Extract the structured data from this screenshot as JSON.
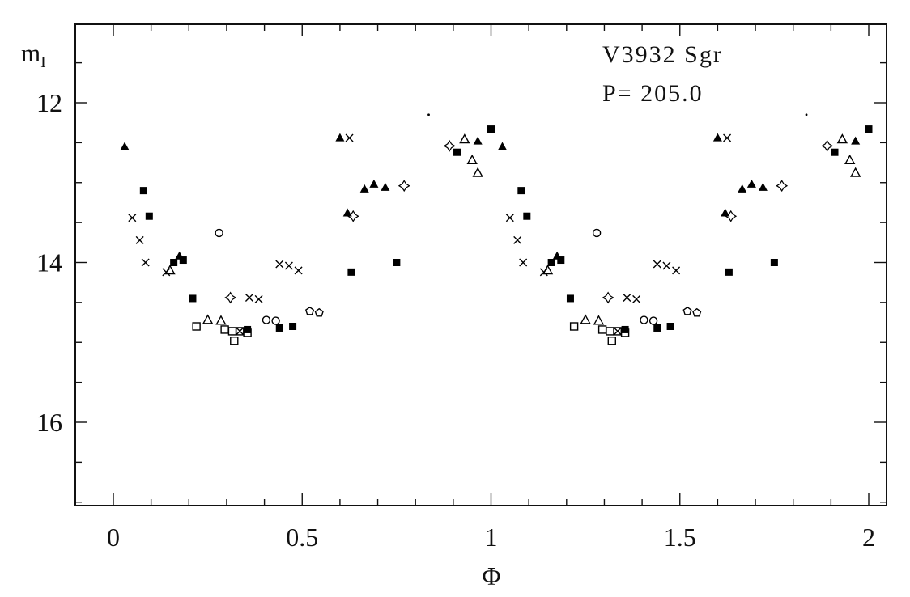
{
  "figure": {
    "y_axis_label_main": "m",
    "y_axis_label_sub": "I"
  },
  "chart_data": {
    "type": "scatter",
    "title": "V3932 Sgr",
    "subtitle": "P= 205.0",
    "xlabel": "Φ",
    "ylabel": "m_I",
    "xlim": [
      -0.1,
      2.05
    ],
    "ylim": [
      11.0,
      17.05
    ],
    "y_inverted": true,
    "grid": false,
    "legend": "none",
    "x_ticks": [
      {
        "value": 0,
        "label": "0"
      },
      {
        "value": 0.5,
        "label": "0.5"
      },
      {
        "value": 1,
        "label": "1"
      },
      {
        "value": 1.5,
        "label": "1.5"
      },
      {
        "value": 2,
        "label": "2"
      }
    ],
    "y_ticks": [
      {
        "value": 12,
        "label": "12"
      },
      {
        "value": 14,
        "label": "14"
      },
      {
        "value": 16,
        "label": "16"
      }
    ],
    "x_minor_step": 0.1,
    "y_minor_step": 0.5,
    "phase_duplication": true,
    "series": [
      {
        "name": "filled-square",
        "symbol": "filled-square",
        "points": [
          [
            0.08,
            13.1
          ],
          [
            0.095,
            13.42
          ],
          [
            0.16,
            14.0
          ],
          [
            0.185,
            13.97
          ],
          [
            0.21,
            14.45
          ],
          [
            0.355,
            14.84
          ],
          [
            0.44,
            14.82
          ],
          [
            0.475,
            14.8
          ],
          [
            0.63,
            14.12
          ],
          [
            0.75,
            14.0
          ],
          [
            0.91,
            12.62
          ],
          [
            1.0,
            12.33
          ]
        ]
      },
      {
        "name": "filled-triangle",
        "symbol": "filled-triangle",
        "points": [
          [
            0.03,
            12.55
          ],
          [
            0.175,
            13.92
          ],
          [
            0.6,
            12.44
          ],
          [
            0.62,
            13.38
          ],
          [
            0.665,
            13.08
          ],
          [
            0.69,
            13.02
          ],
          [
            0.72,
            13.06
          ],
          [
            0.965,
            12.48
          ]
        ]
      },
      {
        "name": "cross",
        "symbol": "cross",
        "points": [
          [
            0.05,
            13.44
          ],
          [
            0.07,
            13.72
          ],
          [
            0.085,
            14.0
          ],
          [
            0.14,
            14.12
          ],
          [
            0.335,
            14.86
          ],
          [
            0.36,
            14.44
          ],
          [
            0.385,
            14.46
          ],
          [
            0.44,
            14.02
          ],
          [
            0.465,
            14.04
          ],
          [
            0.49,
            14.1
          ],
          [
            0.625,
            12.44
          ]
        ]
      },
      {
        "name": "open-circle",
        "symbol": "open-circle",
        "points": [
          [
            0.28,
            13.63
          ],
          [
            0.405,
            14.72
          ],
          [
            0.43,
            14.73
          ]
        ]
      },
      {
        "name": "pentagon",
        "symbol": "pentagon",
        "points": [
          [
            0.52,
            14.61
          ],
          [
            0.545,
            14.63
          ]
        ]
      },
      {
        "name": "open-triangle",
        "symbol": "open-triangle",
        "points": [
          [
            0.15,
            14.1
          ],
          [
            0.25,
            14.72
          ],
          [
            0.285,
            14.73
          ],
          [
            0.93,
            12.46
          ],
          [
            0.95,
            12.72
          ],
          [
            0.965,
            12.88
          ]
        ]
      },
      {
        "name": "open-square",
        "symbol": "open-square",
        "points": [
          [
            0.22,
            14.8
          ],
          [
            0.295,
            14.84
          ],
          [
            0.315,
            14.86
          ],
          [
            0.335,
            14.86
          ],
          [
            0.355,
            14.88
          ],
          [
            0.32,
            14.98
          ]
        ]
      },
      {
        "name": "four-point-star",
        "symbol": "four-point-star",
        "points": [
          [
            0.31,
            14.44
          ],
          [
            0.635,
            13.42
          ],
          [
            0.77,
            13.04
          ],
          [
            0.89,
            12.54
          ]
        ]
      },
      {
        "name": "dot",
        "symbol": "dot",
        "points": [
          [
            0.835,
            12.15
          ]
        ]
      }
    ]
  }
}
